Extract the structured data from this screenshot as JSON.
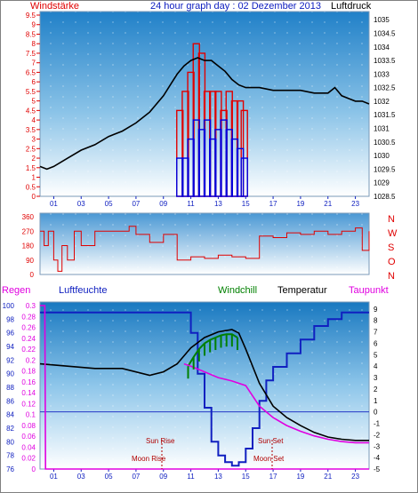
{
  "top_panel": {
    "left_title": "Windstärke",
    "center_title": "24 hour graph day : 02 Dezember 2013",
    "right_title": "Luftdruck",
    "left_title_color": "#e00000",
    "center_title_color": "#1020c0",
    "right_title_color": "#000000"
  },
  "wind_dir_panel": {
    "compass_labels": [
      "N",
      "W",
      "S",
      "O",
      "N"
    ]
  },
  "bottom_panel": {
    "header": {
      "regen": "Regen",
      "luftfeuchte": "Luftfeuchte",
      "windchill": "Windchill",
      "temperatur": "Temperatur",
      "taupunkt": "Taupunkt"
    },
    "header_colors": {
      "regen": "#e000e0",
      "luftfeuchte": "#1020c0",
      "windchill": "#008000",
      "temperatur": "#000000",
      "taupunkt": "#e000e0"
    },
    "annotations": {
      "sun_rise": "Sun Rise",
      "sun_set": "Sun Set",
      "moon_rise": "Moon Rise",
      "moon_set": "Moon Set"
    }
  },
  "chart_data": [
    {
      "type": "line",
      "title": "24 hour graph day : 02 Dezember 2013",
      "x_ticks": [
        "01",
        "03",
        "05",
        "07",
        "09",
        "11",
        "13",
        "15",
        "17",
        "19",
        "21",
        "23"
      ],
      "y_left_label": "Windstärke",
      "y_left_ticks": [
        "0",
        "0.5",
        "1",
        "1.5",
        "2",
        "2.5",
        "3",
        "3.5",
        "4",
        "4.5",
        "5",
        "5.5",
        "6",
        "6.5",
        "7",
        "7.5",
        "8",
        "8.5",
        "9",
        "9.5"
      ],
      "y_left_range": [
        0,
        9.5
      ],
      "y_right_label": "Luftdruck",
      "y_right_ticks": [
        "1028.5",
        "1029",
        "1029.5",
        "1030",
        "1030.5",
        "1031",
        "1031.5",
        "1032",
        "1032.5",
        "1033",
        "1033.5",
        "1034",
        "1034.5",
        "1035"
      ],
      "y_right_range": [
        1028.5,
        1035.3
      ],
      "series": [
        {
          "name": "Luftdruck",
          "color": "#000000",
          "axis": "right",
          "x": [
            0,
            0.5,
            1,
            2,
            3,
            4,
            5,
            6,
            7,
            8,
            9,
            9.5,
            10,
            10.5,
            11,
            11.5,
            12,
            12.5,
            13,
            13.5,
            14,
            14.5,
            15,
            16,
            17,
            18,
            19,
            20,
            21,
            21.5,
            22,
            22.5,
            23,
            23.5,
            24
          ],
          "y": [
            1029.6,
            1029.5,
            1029.6,
            1029.9,
            1030.2,
            1030.4,
            1030.7,
            1030.9,
            1031.2,
            1031.6,
            1032.2,
            1032.6,
            1033.0,
            1033.3,
            1033.5,
            1033.6,
            1033.5,
            1033.5,
            1033.3,
            1033.1,
            1032.8,
            1032.6,
            1032.5,
            1032.5,
            1032.4,
            1032.4,
            1032.4,
            1032.3,
            1032.3,
            1032.5,
            1032.2,
            1032.1,
            1032.0,
            1032.0,
            1031.9
          ]
        },
        {
          "name": "Windstärke (Böen)",
          "color": "#e00000",
          "axis": "left",
          "x": [
            10.2,
            10.6,
            11,
            11.4,
            11.8,
            12.2,
            12.6,
            13,
            13.4,
            13.8,
            14.2,
            14.6,
            14.9
          ],
          "y": [
            4.5,
            5.5,
            6.5,
            8,
            7.5,
            5.5,
            5.5,
            5.5,
            4.5,
            5.5,
            5,
            5,
            4.5
          ]
        },
        {
          "name": "Windstärke (Mittel)",
          "color": "#0000e0",
          "axis": "left",
          "x": [
            10.2,
            10.6,
            11,
            11.4,
            11.8,
            12.2,
            12.6,
            13,
            13.4,
            13.8,
            14.2,
            14.6,
            14.9
          ],
          "y": [
            2,
            2,
            3,
            4,
            3.5,
            4,
            3,
            3.5,
            4,
            3.5,
            3,
            2.5,
            2
          ]
        }
      ]
    },
    {
      "type": "line",
      "title": "",
      "x_ticks": [
        "01",
        "03",
        "05",
        "07",
        "09",
        "11",
        "13",
        "15",
        "17",
        "19",
        "21",
        "23"
      ],
      "y_ticks": [
        "0",
        "90",
        "180",
        "270",
        "360"
      ],
      "y_range": [
        0,
        360
      ],
      "series": [
        {
          "name": "Windrichtung",
          "color": "#e00000",
          "x": [
            0,
            0.3,
            0.6,
            1,
            1.3,
            1.6,
            2,
            2.5,
            3,
            4,
            5,
            6,
            6.5,
            7,
            8,
            9,
            10,
            11,
            12,
            13,
            14,
            15,
            16,
            17,
            18,
            19,
            20,
            21,
            22,
            23,
            23.5,
            24
          ],
          "y": [
            270,
            180,
            270,
            90,
            20,
            180,
            90,
            270,
            180,
            270,
            270,
            270,
            300,
            250,
            200,
            250,
            90,
            110,
            100,
            120,
            110,
            100,
            240,
            230,
            260,
            250,
            270,
            250,
            270,
            290,
            150,
            270
          ]
        }
      ]
    },
    {
      "type": "line",
      "title": "",
      "x_ticks": [
        "01",
        "03",
        "05",
        "07",
        "09",
        "11",
        "13",
        "15",
        "17",
        "19",
        "21",
        "23"
      ],
      "y_rain_ticks": [
        "0",
        "0.02",
        "0.04",
        "0.06",
        "0.08",
        "0.1",
        "0.12",
        "0.14",
        "0.16",
        "0.18",
        "0.2",
        "0.22",
        "0.24",
        "0.26",
        "0.28",
        "0.3"
      ],
      "y_rain_range": [
        0,
        0.3
      ],
      "y_humidity_ticks": [
        "76",
        "78",
        "80",
        "82",
        "84",
        "86",
        "88",
        "90",
        "92",
        "94",
        "96",
        "98",
        "100"
      ],
      "y_humidity_range": [
        76,
        100
      ],
      "y_temp_ticks": [
        "-5",
        "-4",
        "-3",
        "-2",
        "-1",
        "0",
        "1",
        "2",
        "3",
        "4",
        "5",
        "6",
        "7",
        "8",
        "9"
      ],
      "y_temp_range": [
        -5,
        9.3
      ],
      "series": [
        {
          "name": "Luftfeuchte",
          "color": "#1020c0",
          "axis": "humidity",
          "x": [
            0,
            10.5,
            11,
            11.5,
            12,
            12.5,
            13,
            13.5,
            14,
            14.5,
            15,
            15.5,
            16,
            16.5,
            17,
            18,
            19,
            20,
            21,
            22,
            23,
            24
          ],
          "y": [
            99,
            99,
            96,
            90,
            85,
            80,
            78,
            77,
            76.5,
            77,
            79,
            82,
            86,
            89,
            91,
            93,
            95,
            97,
            98,
            99,
            99,
            99
          ]
        },
        {
          "name": "Temperatur",
          "color": "#000000",
          "axis": "temp",
          "x": [
            0,
            2,
            4,
            6,
            8,
            9,
            10,
            11,
            12,
            13,
            14,
            14.5,
            15,
            16,
            17,
            18,
            19,
            20,
            21,
            22,
            23,
            24
          ],
          "y": [
            4.2,
            4.0,
            3.8,
            3.8,
            3.2,
            3.5,
            4.2,
            5.6,
            6.5,
            7.0,
            7.2,
            6.9,
            5.5,
            2.5,
            0.5,
            -0.5,
            -1.2,
            -1.8,
            -2.2,
            -2.4,
            -2.5,
            -2.5
          ]
        },
        {
          "name": "Windchill",
          "color": "#008000",
          "axis": "temp",
          "x": [
            10.8,
            11.2,
            11.6,
            12,
            12.4,
            12.8,
            13.2,
            13.6,
            14,
            14.4
          ],
          "y": [
            4.0,
            4.8,
            5.5,
            6.0,
            6.3,
            6.5,
            6.7,
            6.8,
            6.8,
            6.5
          ]
        },
        {
          "name": "Taupunkt",
          "color": "#e000e0",
          "axis": "temp",
          "x": [
            10.5,
            11,
            12,
            13,
            14,
            15,
            16,
            17,
            18,
            19,
            20,
            21,
            22,
            23,
            24
          ],
          "y": [
            4.2,
            4.0,
            3.5,
            3.0,
            2.7,
            2.3,
            0.5,
            -0.5,
            -1.2,
            -1.7,
            -2.1,
            -2.4,
            -2.6,
            -2.7,
            -2.7
          ]
        },
        {
          "name": "Regen",
          "color": "#e000e0",
          "axis": "rain",
          "x": [
            0,
            0.35,
            0.4,
            24
          ],
          "y": [
            0.3,
            0.3,
            0,
            0
          ]
        }
      ]
    }
  ]
}
